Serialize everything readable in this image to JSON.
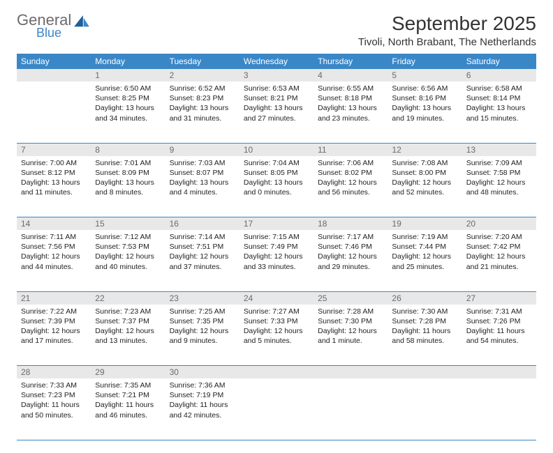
{
  "brand": {
    "word1": "General",
    "word2": "Blue",
    "color_gray": "#6b6b6b",
    "color_blue": "#3a87c8"
  },
  "title": "September 2025",
  "location": "Tivoli, North Brabant, The Netherlands",
  "header_bg": "#3a87c8",
  "daynum_bg": "#e8e8e8",
  "weekdays": [
    "Sunday",
    "Monday",
    "Tuesday",
    "Wednesday",
    "Thursday",
    "Friday",
    "Saturday"
  ],
  "weeks": [
    [
      null,
      {
        "n": "1",
        "sr": "6:50 AM",
        "ss": "8:25 PM",
        "dl": "13 hours and 34 minutes."
      },
      {
        "n": "2",
        "sr": "6:52 AM",
        "ss": "8:23 PM",
        "dl": "13 hours and 31 minutes."
      },
      {
        "n": "3",
        "sr": "6:53 AM",
        "ss": "8:21 PM",
        "dl": "13 hours and 27 minutes."
      },
      {
        "n": "4",
        "sr": "6:55 AM",
        "ss": "8:18 PM",
        "dl": "13 hours and 23 minutes."
      },
      {
        "n": "5",
        "sr": "6:56 AM",
        "ss": "8:16 PM",
        "dl": "13 hours and 19 minutes."
      },
      {
        "n": "6",
        "sr": "6:58 AM",
        "ss": "8:14 PM",
        "dl": "13 hours and 15 minutes."
      }
    ],
    [
      {
        "n": "7",
        "sr": "7:00 AM",
        "ss": "8:12 PM",
        "dl": "13 hours and 11 minutes."
      },
      {
        "n": "8",
        "sr": "7:01 AM",
        "ss": "8:09 PM",
        "dl": "13 hours and 8 minutes."
      },
      {
        "n": "9",
        "sr": "7:03 AM",
        "ss": "8:07 PM",
        "dl": "13 hours and 4 minutes."
      },
      {
        "n": "10",
        "sr": "7:04 AM",
        "ss": "8:05 PM",
        "dl": "13 hours and 0 minutes."
      },
      {
        "n": "11",
        "sr": "7:06 AM",
        "ss": "8:02 PM",
        "dl": "12 hours and 56 minutes."
      },
      {
        "n": "12",
        "sr": "7:08 AM",
        "ss": "8:00 PM",
        "dl": "12 hours and 52 minutes."
      },
      {
        "n": "13",
        "sr": "7:09 AM",
        "ss": "7:58 PM",
        "dl": "12 hours and 48 minutes."
      }
    ],
    [
      {
        "n": "14",
        "sr": "7:11 AM",
        "ss": "7:56 PM",
        "dl": "12 hours and 44 minutes."
      },
      {
        "n": "15",
        "sr": "7:12 AM",
        "ss": "7:53 PM",
        "dl": "12 hours and 40 minutes."
      },
      {
        "n": "16",
        "sr": "7:14 AM",
        "ss": "7:51 PM",
        "dl": "12 hours and 37 minutes."
      },
      {
        "n": "17",
        "sr": "7:15 AM",
        "ss": "7:49 PM",
        "dl": "12 hours and 33 minutes."
      },
      {
        "n": "18",
        "sr": "7:17 AM",
        "ss": "7:46 PM",
        "dl": "12 hours and 29 minutes."
      },
      {
        "n": "19",
        "sr": "7:19 AM",
        "ss": "7:44 PM",
        "dl": "12 hours and 25 minutes."
      },
      {
        "n": "20",
        "sr": "7:20 AM",
        "ss": "7:42 PM",
        "dl": "12 hours and 21 minutes."
      }
    ],
    [
      {
        "n": "21",
        "sr": "7:22 AM",
        "ss": "7:39 PM",
        "dl": "12 hours and 17 minutes."
      },
      {
        "n": "22",
        "sr": "7:23 AM",
        "ss": "7:37 PM",
        "dl": "12 hours and 13 minutes."
      },
      {
        "n": "23",
        "sr": "7:25 AM",
        "ss": "7:35 PM",
        "dl": "12 hours and 9 minutes."
      },
      {
        "n": "24",
        "sr": "7:27 AM",
        "ss": "7:33 PM",
        "dl": "12 hours and 5 minutes."
      },
      {
        "n": "25",
        "sr": "7:28 AM",
        "ss": "7:30 PM",
        "dl": "12 hours and 1 minute."
      },
      {
        "n": "26",
        "sr": "7:30 AM",
        "ss": "7:28 PM",
        "dl": "11 hours and 58 minutes."
      },
      {
        "n": "27",
        "sr": "7:31 AM",
        "ss": "7:26 PM",
        "dl": "11 hours and 54 minutes."
      }
    ],
    [
      {
        "n": "28",
        "sr": "7:33 AM",
        "ss": "7:23 PM",
        "dl": "11 hours and 50 minutes."
      },
      {
        "n": "29",
        "sr": "7:35 AM",
        "ss": "7:21 PM",
        "dl": "11 hours and 46 minutes."
      },
      {
        "n": "30",
        "sr": "7:36 AM",
        "ss": "7:19 PM",
        "dl": "11 hours and 42 minutes."
      },
      null,
      null,
      null,
      null
    ]
  ],
  "labels": {
    "sunrise": "Sunrise:",
    "sunset": "Sunset:",
    "daylight": "Daylight:"
  }
}
